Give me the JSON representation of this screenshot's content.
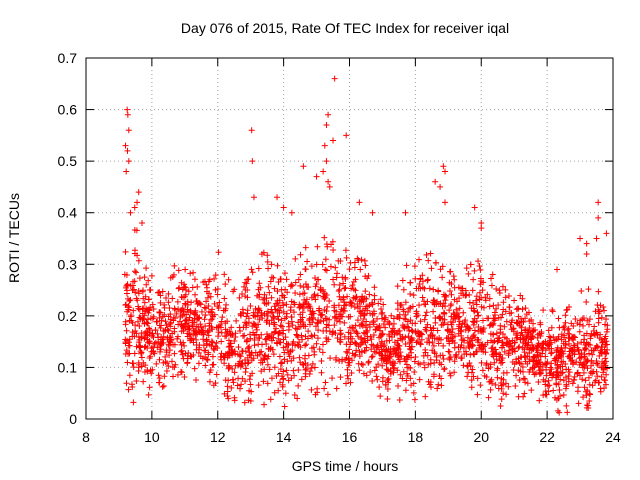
{
  "chart_data": {
    "type": "scatter",
    "title": "Day 076 of 2015, Rate Of TEC Index for receiver iqal",
    "xlabel": "GPS time / hours",
    "ylabel": "ROTI / TECUs",
    "xlim": [
      8,
      24
    ],
    "ylim": [
      0,
      0.7
    ],
    "xticks": [
      8,
      10,
      12,
      14,
      16,
      18,
      20,
      22,
      24
    ],
    "yticks": [
      0,
      0.1,
      0.2,
      0.3,
      0.4,
      0.5,
      0.6,
      0.7
    ],
    "xtick_labels": [
      "8",
      "10",
      "12",
      "14",
      "16",
      "18",
      "20",
      "22",
      "24"
    ],
    "ytick_labels": [
      "0",
      "0.1",
      "0.2",
      "0.3",
      "0.4",
      "0.5",
      "0.6",
      "0.7"
    ],
    "grid": true,
    "marker": "+",
    "color": "#ff0000",
    "series": [
      {
        "name": "ROTI",
        "outliers": [
          [
            9.25,
            0.6
          ],
          [
            9.27,
            0.59
          ],
          [
            9.3,
            0.56
          ],
          [
            9.2,
            0.53
          ],
          [
            9.26,
            0.52
          ],
          [
            9.3,
            0.5
          ],
          [
            9.22,
            0.48
          ],
          [
            9.6,
            0.44
          ],
          [
            9.55,
            0.42
          ],
          [
            9.48,
            0.41
          ],
          [
            9.7,
            0.38
          ],
          [
            9.35,
            0.4
          ],
          [
            13.03,
            0.56
          ],
          [
            13.05,
            0.5
          ],
          [
            13.1,
            0.43
          ],
          [
            13.8,
            0.43
          ],
          [
            15.55,
            0.66
          ],
          [
            15.35,
            0.59
          ],
          [
            15.3,
            0.57
          ],
          [
            15.25,
            0.53
          ],
          [
            15.5,
            0.54
          ],
          [
            15.9,
            0.55
          ],
          [
            15.3,
            0.5
          ],
          [
            15.2,
            0.48
          ],
          [
            15.35,
            0.46
          ],
          [
            15.4,
            0.45
          ],
          [
            14.6,
            0.49
          ],
          [
            15.0,
            0.47
          ],
          [
            14.0,
            0.41
          ],
          [
            14.25,
            0.4
          ],
          [
            16.3,
            0.42
          ],
          [
            16.7,
            0.4
          ],
          [
            18.85,
            0.49
          ],
          [
            18.9,
            0.48
          ],
          [
            18.6,
            0.46
          ],
          [
            18.75,
            0.45
          ],
          [
            18.9,
            0.42
          ],
          [
            19.8,
            0.41
          ],
          [
            17.7,
            0.4
          ],
          [
            20.0,
            0.38
          ],
          [
            20.0,
            0.37
          ],
          [
            23.55,
            0.42
          ],
          [
            23.55,
            0.39
          ],
          [
            23.8,
            0.36
          ],
          [
            23.5,
            0.35
          ],
          [
            23.0,
            0.35
          ],
          [
            23.2,
            0.34
          ],
          [
            22.3,
            0.29
          ],
          [
            23.2,
            0.32
          ]
        ]
      }
    ],
    "density_profile": [
      {
        "x": 9.25,
        "upper": 0.34,
        "lower": 0.06
      },
      {
        "x": 9.5,
        "upper": 0.38,
        "lower": 0.02
      },
      {
        "x": 9.8,
        "upper": 0.3,
        "lower": 0.04
      },
      {
        "x": 10.3,
        "upper": 0.26,
        "lower": 0.05
      },
      {
        "x": 11.0,
        "upper": 0.33,
        "lower": 0.06
      },
      {
        "x": 11.5,
        "upper": 0.26,
        "lower": 0.07
      },
      {
        "x": 12.0,
        "upper": 0.33,
        "lower": 0.05
      },
      {
        "x": 12.6,
        "upper": 0.24,
        "lower": 0.03
      },
      {
        "x": 13.2,
        "upper": 0.32,
        "lower": 0.02
      },
      {
        "x": 13.8,
        "upper": 0.34,
        "lower": 0.03
      },
      {
        "x": 14.4,
        "upper": 0.33,
        "lower": 0.03
      },
      {
        "x": 15.0,
        "upper": 0.36,
        "lower": 0.04
      },
      {
        "x": 15.5,
        "upper": 0.35,
        "lower": 0.04
      },
      {
        "x": 16.0,
        "upper": 0.33,
        "lower": 0.05
      },
      {
        "x": 16.6,
        "upper": 0.3,
        "lower": 0.06
      },
      {
        "x": 17.2,
        "upper": 0.22,
        "lower": 0.03
      },
      {
        "x": 17.7,
        "upper": 0.3,
        "lower": 0.02
      },
      {
        "x": 18.2,
        "upper": 0.33,
        "lower": 0.04
      },
      {
        "x": 18.8,
        "upper": 0.32,
        "lower": 0.05
      },
      {
        "x": 19.4,
        "upper": 0.28,
        "lower": 0.07
      },
      {
        "x": 20.0,
        "upper": 0.33,
        "lower": 0.03
      },
      {
        "x": 20.6,
        "upper": 0.27,
        "lower": 0.02
      },
      {
        "x": 21.2,
        "upper": 0.25,
        "lower": 0.03
      },
      {
        "x": 21.8,
        "upper": 0.22,
        "lower": 0.02
      },
      {
        "x": 22.4,
        "upper": 0.21,
        "lower": 0.01
      },
      {
        "x": 23.0,
        "upper": 0.25,
        "lower": 0.01
      },
      {
        "x": 23.5,
        "upper": 0.26,
        "lower": 0.02
      },
      {
        "x": 23.8,
        "upper": 0.2,
        "lower": 0.05
      }
    ],
    "data_extent": {
      "x_start": 9.17,
      "x_end": 23.83,
      "y_min": 0.01,
      "y_max": 0.66
    }
  }
}
